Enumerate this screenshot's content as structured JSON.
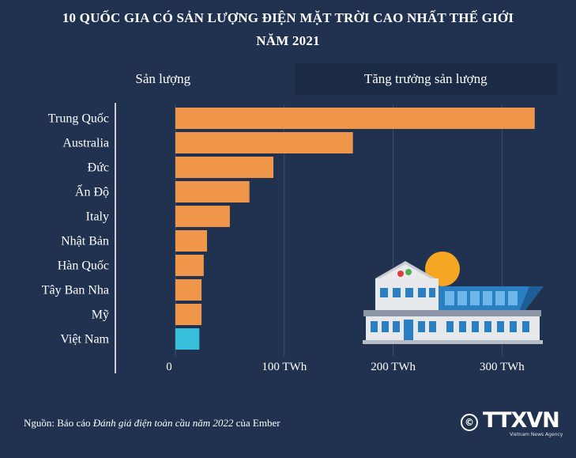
{
  "title_line1": "10 QUỐC GIA CÓ SẢN LƯỢNG ĐIỆN MẶT TRỜI CAO NHẤT THẾ GIỚI",
  "title_line2": "NĂM 2021",
  "tabs": [
    {
      "label": "Sản lượng"
    },
    {
      "label": "Tăng trưởng sản lượng"
    }
  ],
  "source": {
    "prefix": "Nguồn: Báo cáo ",
    "italic": "Đánh giá điện toàn cầu năm 2022",
    "suffix": " của Ember"
  },
  "logo": {
    "mark": "©",
    "text": "TTXVN",
    "sub": "Vietnam News Agency"
  },
  "colors": {
    "background": "#213250",
    "bar": "#f0964a",
    "highlight_bar": "#37bfdc",
    "grid": "#3d5070"
  },
  "chart_data": {
    "type": "bar",
    "orientation": "horizontal",
    "categories": [
      "Trung Quốc",
      "Australia",
      "Đức",
      "Ấn Độ",
      "Italy",
      "Nhật Bản",
      "Hàn Quốc",
      "Tây Ban Nha",
      "Mỹ",
      "Việt Nam"
    ],
    "values": [
      330,
      163,
      90,
      68,
      50,
      29,
      26,
      24,
      24,
      22
    ],
    "highlight": "Việt Nam",
    "x_ticks": [
      {
        "value": 0,
        "label": "0"
      },
      {
        "value": 100,
        "label": "100 TWh"
      },
      {
        "value": 200,
        "label": "200 TWh"
      },
      {
        "value": 300,
        "label": "300 TWh"
      }
    ],
    "xlim": [
      0,
      330
    ],
    "grid": true
  }
}
